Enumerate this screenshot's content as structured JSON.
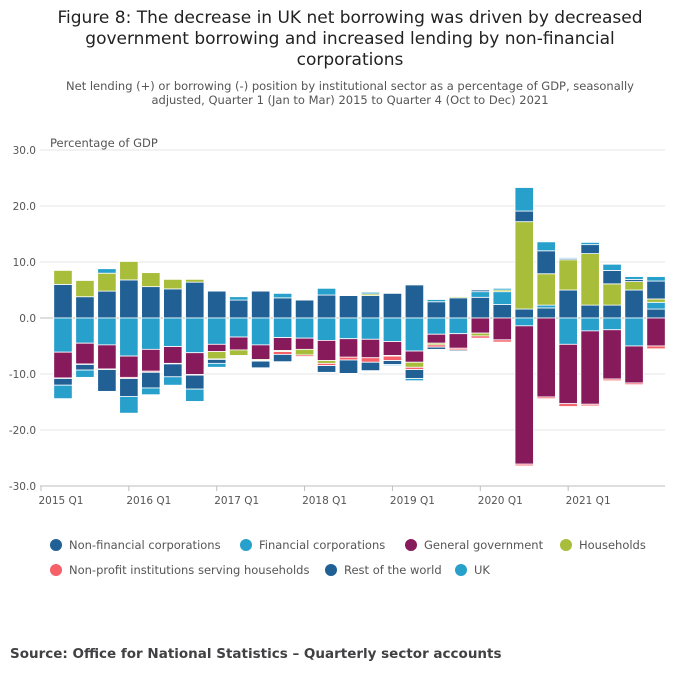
{
  "title": "Figure 8: The decrease in UK net borrowing was driven by decreased government borrowing and increased lending by non-financial corporations",
  "subtitle": "Net lending (+) or borrowing (-) position by institutional sector as a percentage of GDP, seasonally adjusted, Quarter 1 (Jan to Mar) 2015 to Quarter 4 (Oct to Dec) 2021",
  "source": "Source: Office for National Statistics – Quarterly sector accounts",
  "colors": {
    "nfc": "#206095",
    "fc": "#27a0cc",
    "gov": "#871a5b",
    "hh": "#a8bd3a",
    "npish": "#f66068",
    "row": "#206095",
    "uk": "#27a0cc"
  },
  "chart_data": {
    "type": "bar",
    "stacked": true,
    "title": "Figure 8: The decrease in UK net borrowing was driven by decreased government borrowing and increased lending by non-financial corporations",
    "ylabel": "Percentage of GDP",
    "ylim": [
      -30,
      30
    ],
    "yticks": [
      "30.0",
      "20.0",
      "10.0",
      "0.0",
      "-10.0",
      "-20.0",
      "-30.0"
    ],
    "grid": true,
    "legend_position": "bottom",
    "x_tick_labels": [
      "2015 Q1",
      "2016 Q1",
      "2017 Q1",
      "2018 Q1",
      "2019 Q1",
      "2020 Q1",
      "2021 Q1"
    ],
    "categories": [
      "2015 Q1",
      "2015 Q2",
      "2015 Q3",
      "2015 Q4",
      "2016 Q1",
      "2016 Q2",
      "2016 Q3",
      "2016 Q4",
      "2017 Q1",
      "2017 Q2",
      "2017 Q3",
      "2017 Q4",
      "2018 Q1",
      "2018 Q2",
      "2018 Q3",
      "2018 Q4",
      "2019 Q1",
      "2019 Q2",
      "2019 Q3",
      "2019 Q4",
      "2020 Q1",
      "2020 Q2",
      "2020 Q3",
      "2020 Q4",
      "2021 Q1",
      "2021 Q2",
      "2021 Q3",
      "2021 Q4"
    ],
    "series": [
      {
        "name": "Non-financial corporations",
        "key": "nfc",
        "values": [
          6.0,
          3.8,
          4.8,
          6.8,
          5.6,
          5.2,
          6.4,
          4.8,
          3.2,
          4.8,
          3.6,
          3.2,
          4.1,
          4.0,
          4.0,
          4.4,
          5.9,
          2.9,
          3.6,
          3.7,
          2.4,
          1.6,
          1.8,
          5.0,
          2.3,
          2.3,
          5.0,
          1.6
        ]
      },
      {
        "name": "Financial corporations",
        "key": "fc",
        "values": [
          -6.1,
          -4.5,
          -4.8,
          -6.8,
          -5.6,
          -5.1,
          -6.2,
          -4.7,
          -3.4,
          -4.8,
          -3.5,
          -3.6,
          -4.0,
          -3.7,
          -3.8,
          -4.2,
          -5.9,
          -2.9,
          -2.8,
          1.0,
          2.3,
          -1.4,
          0.5,
          -4.7,
          -2.3,
          -2.1,
          -5.0,
          1.2
        ]
      },
      {
        "name": "General government",
        "key": "gov",
        "values": [
          -4.6,
          -3.7,
          -4.3,
          -3.8,
          -3.9,
          -3.0,
          -3.9,
          -1.3,
          -2.3,
          -2.6,
          -2.3,
          -2.0,
          -3.6,
          -3.3,
          -3.3,
          -2.5,
          -2.0,
          -1.6,
          -2.6,
          -2.7,
          -3.9,
          -24.7,
          -14.1,
          -10.6,
          -13.1,
          -8.8,
          -6.6,
          -5.0
        ]
      },
      {
        "name": "Households",
        "key": "hh",
        "values": [
          2.5,
          2.9,
          3.2,
          3.3,
          2.5,
          1.7,
          0.5,
          -1.3,
          -1.0,
          -0.2,
          -0.2,
          -1.0,
          -0.5,
          0.1,
          0.3,
          -0.1,
          -0.9,
          -0.3,
          0.2,
          -0.5,
          0.3,
          15.6,
          5.6,
          5.4,
          9.2,
          3.8,
          1.5,
          0.6
        ]
      },
      {
        "name": "Non-profit institutions serving households",
        "key": "npish",
        "values": [
          -0.1,
          -0.1,
          -0.1,
          -0.2,
          -0.2,
          -0.1,
          -0.1,
          -0.1,
          -0.1,
          -0.1,
          -0.5,
          -0.3,
          -0.4,
          -0.5,
          -0.8,
          -0.8,
          -0.4,
          -0.4,
          -0.3,
          -0.4,
          -0.4,
          -0.3,
          -0.3,
          -0.5,
          -0.3,
          -0.3,
          -0.3,
          -0.5
        ]
      },
      {
        "name": "Rest of the world",
        "key": "row",
        "values": [
          -1.2,
          -1.0,
          -3.9,
          -3.2,
          -2.8,
          -2.3,
          -2.5,
          -0.7,
          0.0,
          -1.2,
          -1.3,
          0.0,
          -1.2,
          -2.4,
          -1.5,
          -0.7,
          -1.6,
          -0.4,
          -0.2,
          0.3,
          0.0,
          1.9,
          4.1,
          0.2,
          1.6,
          2.4,
          0.4,
          3.2
        ]
      },
      {
        "name": "UK",
        "key": "uk",
        "values": [
          -2.4,
          -1.3,
          0.8,
          -3.0,
          -1.2,
          -1.5,
          -2.2,
          -0.7,
          0.6,
          -0.1,
          0.8,
          -0.1,
          1.2,
          -0.1,
          0.3,
          -0.2,
          -0.4,
          0.4,
          0.0,
          0.0,
          0.3,
          4.2,
          1.6,
          0.2,
          0.4,
          1.1,
          0.5,
          0.8
        ]
      }
    ]
  }
}
